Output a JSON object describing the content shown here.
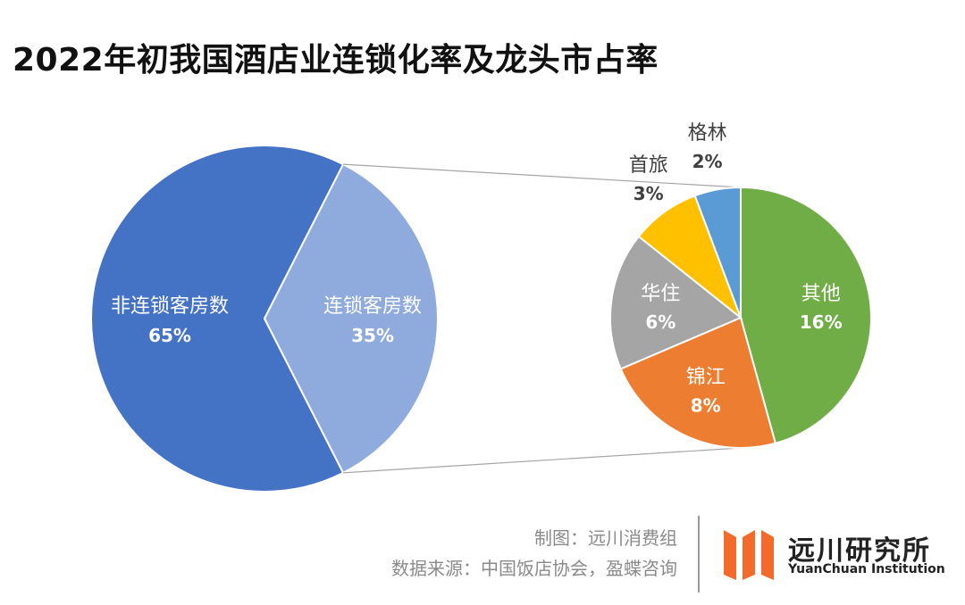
{
  "title": "2022年初我国酒店业连锁化率及龙头市占率",
  "chart_data": [
    {
      "type": "pie",
      "slices": [
        {
          "label": "非连锁客房数",
          "value": 65,
          "value_label": "65%",
          "color": "#4472C4"
        },
        {
          "label": "连锁客房数",
          "value": 35,
          "value_label": "35%",
          "color": "#8FAADC"
        }
      ]
    },
    {
      "type": "pie",
      "slices": [
        {
          "label": "其他",
          "value": 16,
          "value_label": "16%",
          "color": "#70AD47"
        },
        {
          "label": "锦江",
          "value": 8,
          "value_label": "8%",
          "color": "#ED7D31"
        },
        {
          "label": "华住",
          "value": 6,
          "value_label": "6%",
          "color": "#A5A5A5"
        },
        {
          "label": "首旅",
          "value": 3,
          "value_label": "3%",
          "color": "#FFC000"
        },
        {
          "label": "格林",
          "value": 2,
          "value_label": "2%",
          "color": "#5B9BD5"
        }
      ]
    }
  ],
  "credits": {
    "maker": "制图：远川消费组",
    "source": "数据来源：中国饭店协会，盈蝶咨询"
  },
  "logo": {
    "name": "远川研究所",
    "english": "YuanChuan Institution",
    "color": "#F26B2A"
  }
}
